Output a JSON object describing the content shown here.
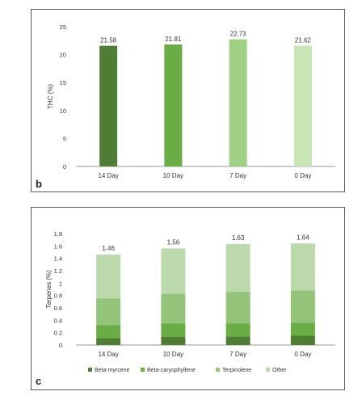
{
  "chart_data": [
    {
      "type": "bar",
      "panel_letter": "b",
      "categories": [
        "14 Day",
        "10 Day",
        "7 Day",
        "0 Day"
      ],
      "values": [
        21.58,
        21.81,
        22.73,
        21.62
      ],
      "value_labels": [
        "21.58",
        "21.81",
        "22.73",
        "21.62"
      ],
      "ylabel": "THC (%)",
      "xlabel": "",
      "ylim": [
        0,
        25
      ],
      "yticks": [
        0,
        5,
        10,
        15,
        20,
        25
      ],
      "bar_colors": [
        "#4f7d34",
        "#6aad45",
        "#9fd083",
        "#c8e5b5"
      ],
      "grid": false
    },
    {
      "type": "bar",
      "stacked": true,
      "panel_letter": "c",
      "categories": [
        "14 Day",
        "10 Day",
        "7 Day",
        "0 Day"
      ],
      "series": [
        {
          "name": "Beta-myrcene",
          "values": [
            0.11,
            0.13,
            0.14,
            0.15
          ],
          "color": "#4f7d34"
        },
        {
          "name": "Beta-caryophyllene",
          "values": [
            0.21,
            0.22,
            0.21,
            0.21
          ],
          "color": "#6aad45"
        },
        {
          "name": "Terpinolene",
          "values": [
            0.43,
            0.48,
            0.51,
            0.52
          ],
          "color": "#94c47a"
        },
        {
          "name": "Other",
          "values": [
            0.71,
            0.73,
            0.77,
            0.76
          ],
          "color": "#bcd9ab"
        }
      ],
      "totals": [
        "1.46",
        "1.56",
        "1.63",
        "1.64"
      ],
      "ylabel": "Terpenes (%)",
      "xlabel": "",
      "ylim": [
        0,
        1.8
      ],
      "yticks": [
        "0",
        "0.2",
        "0.4",
        "0.6",
        "0.8",
        "1",
        "1.2",
        "1.4",
        "1.6",
        "1.8"
      ],
      "legend_position": "bottom",
      "grid": false
    }
  ]
}
